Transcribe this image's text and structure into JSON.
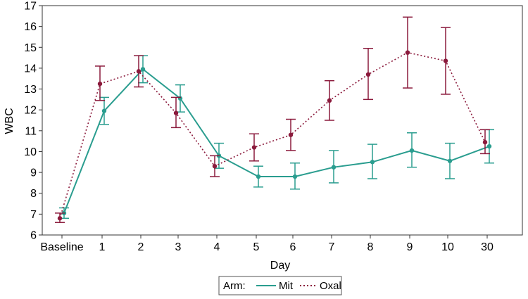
{
  "chart_data": {
    "type": "line",
    "title": "",
    "xlabel": "Day",
    "ylabel": "WBC",
    "ylim": [
      6,
      17
    ],
    "yticks": [
      6,
      7,
      8,
      9,
      10,
      11,
      12,
      13,
      14,
      15,
      16,
      17
    ],
    "categories": [
      "Baseline",
      "1",
      "2",
      "3",
      "4",
      "5",
      "6",
      "7",
      "8",
      "9",
      "10",
      "30"
    ],
    "legend": {
      "title": "Arm:",
      "position": "bottom-center"
    },
    "series": [
      {
        "name": "Mit",
        "color": "#2a9d8f",
        "line_style": "solid",
        "values": [
          7.05,
          11.95,
          13.95,
          12.55,
          9.8,
          8.8,
          8.8,
          9.25,
          9.5,
          10.05,
          9.55,
          10.25
        ],
        "lower": [
          6.8,
          11.3,
          13.3,
          11.9,
          9.2,
          8.3,
          8.2,
          8.5,
          8.7,
          9.25,
          8.7,
          9.45
        ],
        "upper": [
          7.3,
          12.6,
          14.6,
          13.2,
          10.4,
          9.3,
          9.45,
          10.05,
          10.35,
          10.9,
          10.4,
          11.05
        ]
      },
      {
        "name": "Oxal",
        "color": "#8b1a3c",
        "line_style": "dotted",
        "values": [
          6.8,
          13.25,
          13.85,
          11.85,
          9.3,
          10.2,
          10.8,
          12.45,
          13.7,
          14.75,
          14.35,
          10.45
        ],
        "lower": [
          6.6,
          12.45,
          13.1,
          11.15,
          8.8,
          9.55,
          10.05,
          11.5,
          12.5,
          13.05,
          12.75,
          9.9
        ],
        "upper": [
          7.05,
          14.1,
          14.6,
          12.6,
          9.8,
          10.85,
          11.55,
          13.4,
          14.95,
          16.45,
          15.95,
          11.05
        ]
      }
    ]
  }
}
